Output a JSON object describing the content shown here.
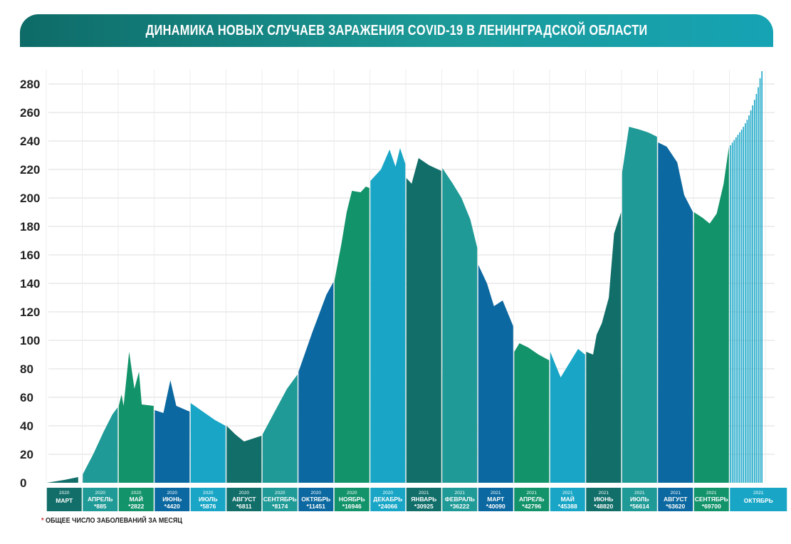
{
  "title": "ДИНАМИКА НОВЫХ СЛУЧАЕВ ЗАРАЖЕНИЯ COVID-19 В ЛЕНИНГРАДСКОЙ ОБЛАСТИ",
  "footnote": {
    "star": "*",
    "text": "ОБЩЕЕ ЧИСЛО ЗАБОЛЕВАНИЙ ЗА МЕСЯЦ"
  },
  "colors": {
    "teal_dark": "#116e69",
    "teal": "#1f9a96",
    "green": "#13936a",
    "blue_dark": "#0b68a0",
    "cyan": "#19a6c6",
    "title_bar": "#1c9a98",
    "footnote_star": "#d6262b"
  },
  "chart_data": {
    "type": "area",
    "title": "ДИНАМИКА НОВЫХ СЛУЧАЕВ ЗАРАЖЕНИЯ COVID-19 В ЛЕНИНГРАДСКОЙ ОБЛАСТИ",
    "xlabel": "",
    "ylabel": "",
    "ylim": [
      0,
      290
    ],
    "yticks": [
      "0",
      "20",
      "40",
      "60",
      "80",
      "100",
      "120",
      "140",
      "160",
      "180",
      "200",
      "220",
      "240",
      "260",
      "280"
    ],
    "grid": true,
    "months": [
      {
        "year": "2020",
        "name": "МАРТ",
        "total": "",
        "color": "#116e69",
        "points": [
          [
            0.0,
            0
          ],
          [
            0.5,
            2
          ],
          [
            0.9,
            4
          ]
        ]
      },
      {
        "year": "2020",
        "name": "АПРЕЛЬ",
        "total": "*885",
        "color": "#1f9a96",
        "points": [
          [
            0.0,
            6
          ],
          [
            0.3,
            20
          ],
          [
            0.6,
            36
          ],
          [
            0.85,
            48
          ],
          [
            1.0,
            53
          ]
        ]
      },
      {
        "year": "2020",
        "name": "МАЙ",
        "total": "*2822",
        "color": "#13936a",
        "points": [
          [
            0.0,
            54
          ],
          [
            0.08,
            62
          ],
          [
            0.14,
            54
          ],
          [
            0.3,
            92
          ],
          [
            0.45,
            66
          ],
          [
            0.58,
            78
          ],
          [
            0.66,
            55
          ],
          [
            1.0,
            54
          ]
        ]
      },
      {
        "year": "2020",
        "name": "ИЮНЬ",
        "total": "*4420",
        "color": "#0b68a0",
        "points": [
          [
            0.0,
            51
          ],
          [
            0.25,
            49
          ],
          [
            0.45,
            72
          ],
          [
            0.62,
            54
          ],
          [
            1.0,
            50
          ]
        ]
      },
      {
        "year": "2020",
        "name": "ИЮЛЬ",
        "total": "*5876",
        "color": "#19a6c6",
        "points": [
          [
            0.0,
            56
          ],
          [
            0.35,
            50
          ],
          [
            0.7,
            44
          ],
          [
            1.0,
            40
          ]
        ]
      },
      {
        "year": "2020",
        "name": "АВГУСТ",
        "total": "*6811",
        "color": "#116e69",
        "points": [
          [
            0.0,
            40
          ],
          [
            0.25,
            34
          ],
          [
            0.5,
            29
          ],
          [
            0.75,
            31
          ],
          [
            1.0,
            33
          ]
        ]
      },
      {
        "year": "2020",
        "name": "СЕНТЯБРЬ",
        "total": "*8174",
        "color": "#1f9a96",
        "points": [
          [
            0.0,
            34
          ],
          [
            0.35,
            50
          ],
          [
            0.7,
            66
          ],
          [
            1.0,
            76
          ]
        ]
      },
      {
        "year": "2020",
        "name": "ОКТЯБРЬ",
        "total": "*11451",
        "color": "#0b68a0",
        "points": [
          [
            0.0,
            78
          ],
          [
            0.4,
            106
          ],
          [
            0.8,
            132
          ],
          [
            1.0,
            141
          ]
        ]
      },
      {
        "year": "2020",
        "name": "НОЯБРЬ",
        "total": "*16946",
        "color": "#13936a",
        "points": [
          [
            0.0,
            142
          ],
          [
            0.2,
            168
          ],
          [
            0.35,
            190
          ],
          [
            0.5,
            205
          ],
          [
            0.75,
            204
          ],
          [
            0.9,
            208
          ],
          [
            1.0,
            207
          ]
        ]
      },
      {
        "year": "2020",
        "name": "ДЕКАБРЬ",
        "total": "*24066",
        "color": "#19a6c6",
        "points": [
          [
            0.0,
            212
          ],
          [
            0.3,
            220
          ],
          [
            0.55,
            234
          ],
          [
            0.72,
            222
          ],
          [
            0.85,
            235
          ],
          [
            1.0,
            224
          ]
        ]
      },
      {
        "year": "2021",
        "name": "ЯНВАРЬ",
        "total": "*30925",
        "color": "#116e69",
        "points": [
          [
            0.0,
            214
          ],
          [
            0.15,
            210
          ],
          [
            0.35,
            228
          ],
          [
            0.65,
            223
          ],
          [
            1.0,
            219
          ]
        ]
      },
      {
        "year": "2021",
        "name": "ФЕВРАЛЬ",
        "total": "*36222",
        "color": "#1f9a96",
        "points": [
          [
            0.0,
            221
          ],
          [
            0.3,
            210
          ],
          [
            0.55,
            200
          ],
          [
            0.8,
            185
          ],
          [
            1.0,
            165
          ]
        ]
      },
      {
        "year": "2021",
        "name": "МАРТ",
        "total": "*40090",
        "color": "#0b68a0",
        "points": [
          [
            0.0,
            153
          ],
          [
            0.25,
            140
          ],
          [
            0.45,
            124
          ],
          [
            0.7,
            128
          ],
          [
            1.0,
            110
          ]
        ]
      },
      {
        "year": "2021",
        "name": "АПРЕЛЬ",
        "total": "*42796",
        "color": "#13936a",
        "points": [
          [
            0.0,
            92
          ],
          [
            0.15,
            98
          ],
          [
            0.4,
            95
          ],
          [
            0.7,
            90
          ],
          [
            1.0,
            86
          ]
        ]
      },
      {
        "year": "2021",
        "name": "МАЙ",
        "total": "*45388",
        "color": "#19a6c6",
        "points": [
          [
            0.0,
            92
          ],
          [
            0.3,
            74
          ],
          [
            0.55,
            84
          ],
          [
            0.8,
            94
          ],
          [
            1.0,
            90
          ]
        ]
      },
      {
        "year": "2021",
        "name": "ИЮНЬ",
        "total": "*48820",
        "color": "#116e69",
        "points": [
          [
            0.0,
            92
          ],
          [
            0.2,
            90
          ],
          [
            0.3,
            104
          ],
          [
            0.45,
            112
          ],
          [
            0.65,
            130
          ],
          [
            0.8,
            175
          ],
          [
            1.0,
            190
          ]
        ]
      },
      {
        "year": "2021",
        "name": "ИЮЛЬ",
        "total": "*56614",
        "color": "#1f9a96",
        "points": [
          [
            0.0,
            218
          ],
          [
            0.2,
            250
          ],
          [
            0.5,
            248
          ],
          [
            0.75,
            246
          ],
          [
            1.0,
            243
          ]
        ]
      },
      {
        "year": "2021",
        "name": "АВГУСТ",
        "total": "*63620",
        "color": "#0b68a0",
        "points": [
          [
            0.0,
            239
          ],
          [
            0.25,
            236
          ],
          [
            0.55,
            225
          ],
          [
            0.75,
            202
          ],
          [
            1.0,
            190
          ]
        ]
      },
      {
        "year": "2021",
        "name": "СЕНТЯБРЬ",
        "total": "*69700",
        "color": "#13936a",
        "points": [
          [
            0.0,
            190
          ],
          [
            0.25,
            186
          ],
          [
            0.45,
            182
          ],
          [
            0.65,
            189
          ],
          [
            0.85,
            210
          ],
          [
            1.0,
            236
          ]
        ]
      },
      {
        "year": "2021",
        "name": "ОКТЯБРЬ",
        "total": "",
        "color": "#19a6c6",
        "points": [
          [
            0.0,
            237
          ],
          [
            0.2,
            244
          ],
          [
            0.35,
            249
          ],
          [
            0.5,
            256
          ],
          [
            0.65,
            266
          ],
          [
            0.78,
            276
          ],
          [
            0.88,
            288
          ],
          [
            0.9,
            289
          ]
        ]
      }
    ]
  }
}
